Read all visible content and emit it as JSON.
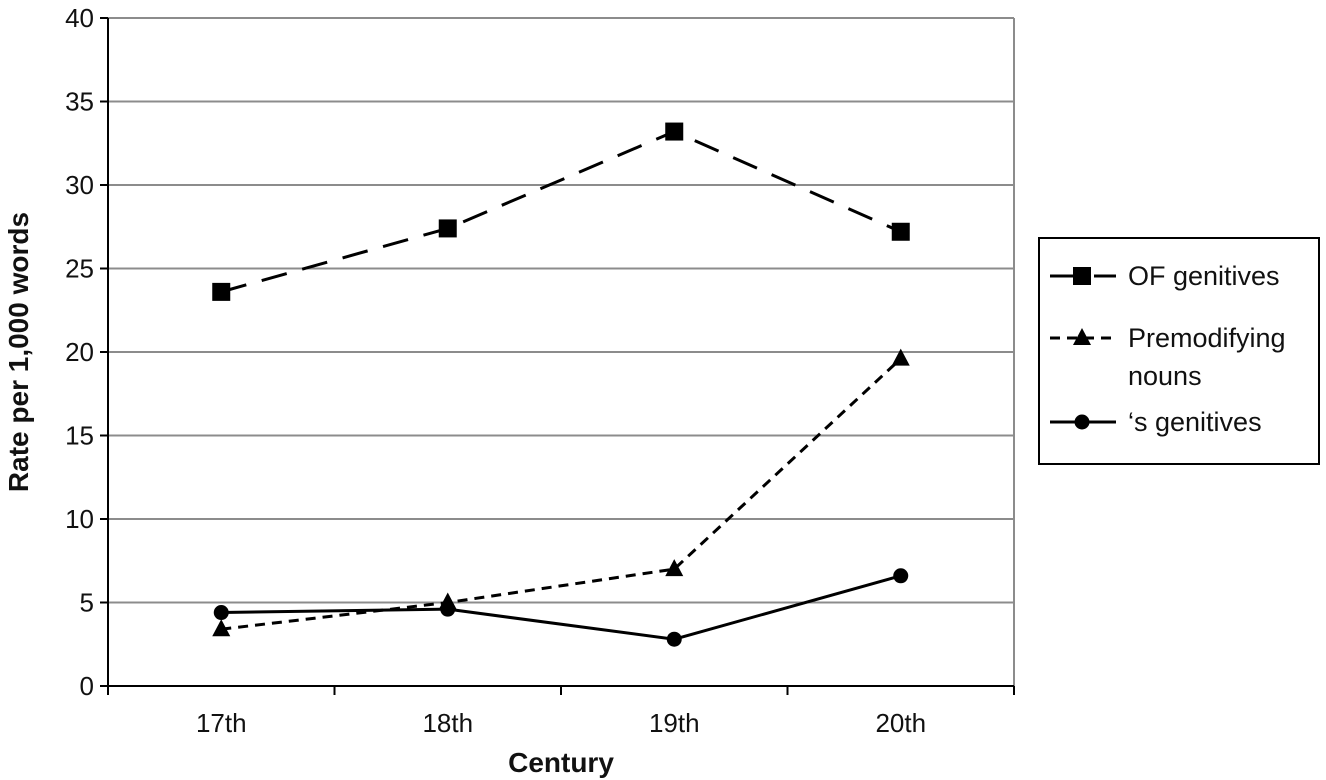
{
  "chart_data": {
    "type": "line",
    "categories": [
      "17th",
      "18th",
      "19th",
      "20th"
    ],
    "xlabel": "Century",
    "ylabel": "Rate per 1,000 words",
    "ylim": [
      0,
      40
    ],
    "y_ticks": [
      "0",
      "5",
      "10",
      "15",
      "20",
      "25",
      "30",
      "35",
      "40"
    ],
    "grid": true,
    "legend_position": "right",
    "series": [
      {
        "name": "OF genitives",
        "values": [
          23.6,
          27.4,
          33.2,
          27.2
        ],
        "marker": "square",
        "line_style": "long-dash",
        "color": "#000000"
      },
      {
        "name": "Premodifying nouns",
        "name_lines": [
          "Premodifying",
          "nouns"
        ],
        "values": [
          3.4,
          5.0,
          7.0,
          19.6
        ],
        "marker": "triangle",
        "line_style": "short-dash",
        "color": "#000000"
      },
      {
        "name": "‘s genitives",
        "values": [
          4.4,
          4.6,
          2.8,
          6.6
        ],
        "marker": "circle",
        "line_style": "solid",
        "color": "#000000"
      }
    ]
  }
}
